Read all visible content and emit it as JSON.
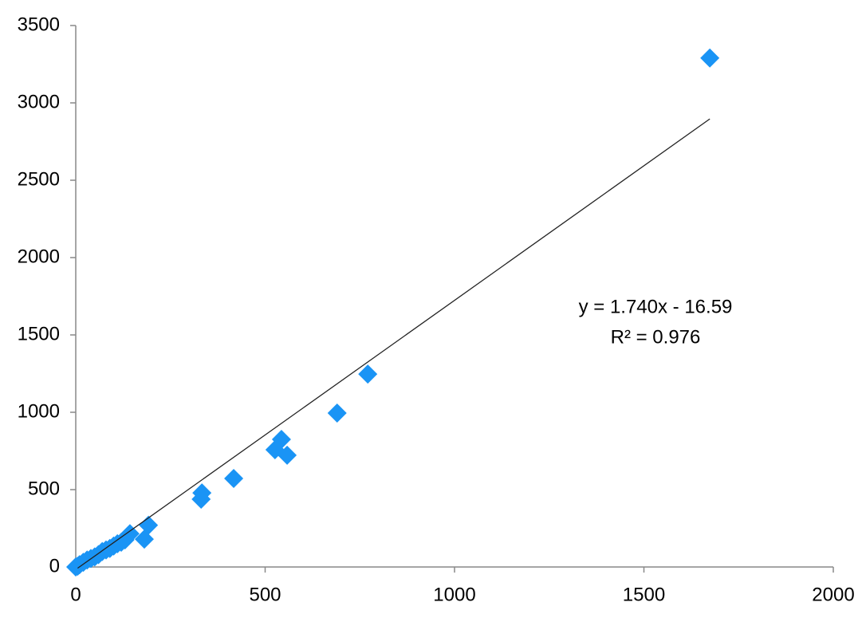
{
  "chart_data": {
    "type": "scatter",
    "x": [
      0,
      5,
      10,
      20,
      30,
      40,
      50,
      60,
      70,
      80,
      90,
      100,
      110,
      120,
      130,
      143,
      181,
      192,
      331,
      333,
      417,
      526,
      543,
      558,
      690,
      771,
      1674
    ],
    "values": [
      0,
      5,
      15,
      30,
      45,
      55,
      65,
      80,
      100,
      110,
      120,
      135,
      150,
      160,
      175,
      215,
      180,
      270,
      438,
      479,
      572,
      758,
      825,
      722,
      995,
      1247,
      3290
    ],
    "color": "#1a94f5",
    "xlim": [
      0,
      2000
    ],
    "xticks": [
      0,
      500,
      1000,
      1500,
      2000
    ],
    "ylim": [
      0,
      3500
    ],
    "yticks": [
      0,
      500,
      1000,
      1500,
      2000,
      2500,
      3000,
      3500
    ],
    "trendline": {
      "slope": 1.74,
      "intercept": -16.59,
      "label": "y = 1.740x - 16.59",
      "r2_label": "R² = 0.976"
    }
  }
}
